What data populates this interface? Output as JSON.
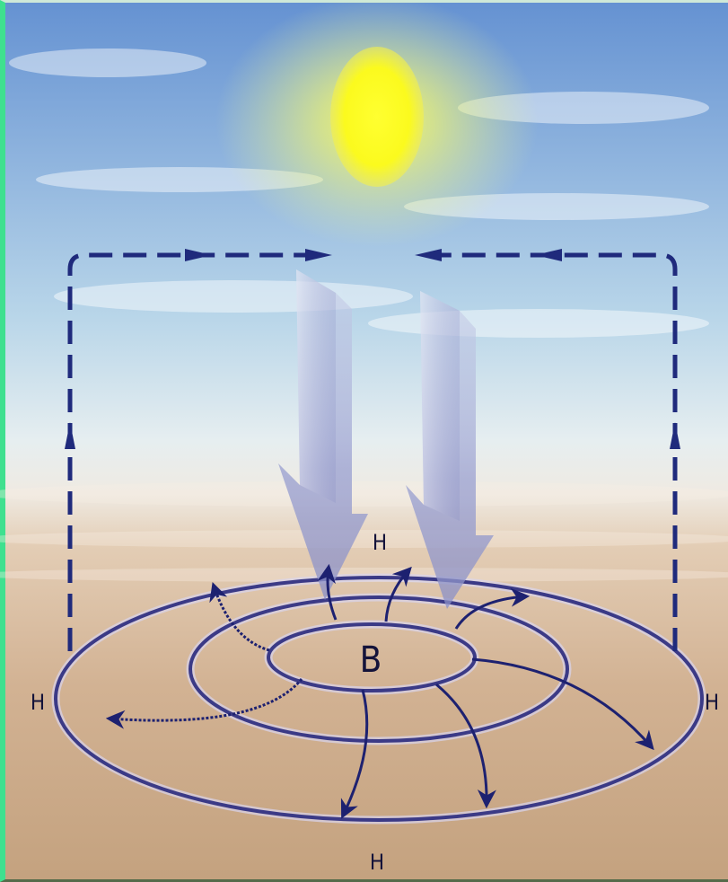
{
  "labels": {
    "top_h": "H",
    "left_h": "H",
    "right_h": "H",
    "bottom_h": "H",
    "center_b": "B"
  },
  "colors": {
    "sky_top": "#5f8fd0",
    "sun": "#ffff33",
    "sun_glow": "#eef55a",
    "ground": "#c9a985",
    "isobar": "#3b3a86",
    "dashed_flow": "#1f2a7c",
    "sink_arrow": "#8d91c6"
  },
  "icons": [
    "sun-icon",
    "descending-air-arrow-icon",
    "dashed-circulation-arrow-icon",
    "outflow-arrow-icon"
  ]
}
